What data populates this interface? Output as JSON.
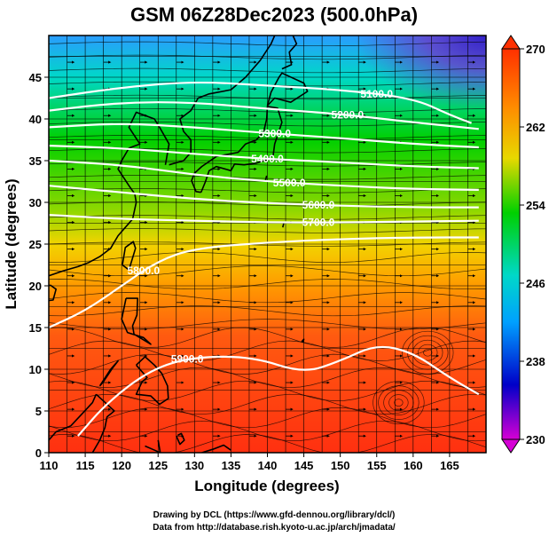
{
  "title": "GSM 06Z28Dec2023 (500.0hPa)",
  "xlabel": "Longitude (degrees)",
  "ylabel": "Latitude  (degrees)",
  "footer": [
    "Drawing by DCL (https://www.gfd-dennou.org/library/dcl/)",
    "Data from http://database.rish.kyoto-u.ac.jp/arch/jmadata/"
  ],
  "chart_data": {
    "type": "heatmap",
    "title": "GSM 06Z28Dec2023 (500.0hPa)",
    "xlabel": "Longitude (degrees)",
    "ylabel": "Latitude  (degrees)",
    "xlim": [
      110,
      170
    ],
    "ylim": [
      0,
      50
    ],
    "x_ticks": [
      110,
      115,
      120,
      125,
      130,
      135,
      140,
      145,
      150,
      155,
      160,
      165
    ],
    "y_ticks": [
      0,
      5,
      10,
      15,
      20,
      25,
      30,
      35,
      40,
      45
    ],
    "grid": true,
    "field": "temperature (K), shaded",
    "overlay": "wind streamlines and geopotential height contours",
    "colorbar": {
      "min": 230,
      "max": 270,
      "ticks": [
        230,
        238,
        246,
        254,
        262,
        270
      ],
      "colors": [
        "#d500d5",
        "#0000c8",
        "#00a0ff",
        "#00d8c8",
        "#00d000",
        "#e8d800",
        "#ff8c00",
        "#ff3000"
      ]
    },
    "contour_labels": [
      "5100.0",
      "5200.0",
      "5300.0",
      "5400.0",
      "5500.0",
      "5600.0",
      "5700.0",
      "5800.0",
      "5900.0"
    ],
    "contours": [
      {
        "level": "5100.0",
        "points": [
          [
            110,
            42.5
          ],
          [
            120,
            43.8
          ],
          [
            130,
            44.5
          ],
          [
            140,
            44.0
          ],
          [
            150,
            43.5
          ],
          [
            160,
            42.5
          ],
          [
            165,
            40.5
          ],
          [
            168,
            39.5
          ]
        ]
      },
      {
        "level": "5200.0",
        "points": [
          [
            110,
            41
          ],
          [
            120,
            42
          ],
          [
            130,
            42
          ],
          [
            140,
            41.2
          ],
          [
            150,
            40.6
          ],
          [
            160,
            39.6
          ],
          [
            169,
            38.8
          ]
        ]
      },
      {
        "level": "5300.0",
        "points": [
          [
            110,
            39
          ],
          [
            120,
            39.5
          ],
          [
            130,
            39
          ],
          [
            140,
            38.3
          ],
          [
            150,
            37.7
          ],
          [
            160,
            37
          ],
          [
            169,
            36.6
          ]
        ]
      },
      {
        "level": "5400.0",
        "points": [
          [
            110,
            36.8
          ],
          [
            120,
            36.5
          ],
          [
            130,
            35.8
          ],
          [
            140,
            35.2
          ],
          [
            150,
            34.8
          ],
          [
            160,
            34.3
          ],
          [
            169,
            34.1
          ]
        ]
      },
      {
        "level": "5500.0",
        "points": [
          [
            110,
            35
          ],
          [
            120,
            34.5
          ],
          [
            130,
            33.3
          ],
          [
            140,
            32.5
          ],
          [
            150,
            32.0
          ],
          [
            160,
            31.6
          ],
          [
            169,
            31.5
          ]
        ]
      },
      {
        "level": "5600.0",
        "points": [
          [
            110,
            32
          ],
          [
            120,
            31.2
          ],
          [
            130,
            30.4
          ],
          [
            140,
            29.9
          ],
          [
            150,
            29.6
          ],
          [
            160,
            29.4
          ],
          [
            169,
            29.4
          ]
        ]
      },
      {
        "level": "5700.0",
        "points": [
          [
            110,
            28.5
          ],
          [
            120,
            28.0
          ],
          [
            130,
            27.8
          ],
          [
            140,
            27.6
          ],
          [
            150,
            27.6
          ],
          [
            160,
            27.7
          ],
          [
            169,
            27.8
          ]
        ]
      },
      {
        "level": "5800.0",
        "points": [
          [
            110,
            15
          ],
          [
            115,
            17
          ],
          [
            120,
            20
          ],
          [
            125,
            23
          ],
          [
            130,
            24.5
          ],
          [
            140,
            25.2
          ],
          [
            150,
            25.6
          ],
          [
            160,
            25.8
          ],
          [
            169,
            25.8
          ]
        ]
      },
      {
        "level": "5900.0",
        "points": [
          [
            114,
            2
          ],
          [
            118,
            6
          ],
          [
            124,
            10
          ],
          [
            130,
            11.5
          ],
          [
            138,
            11.5
          ],
          [
            145,
            9.5
          ],
          [
            150,
            11
          ],
          [
            155,
            13
          ],
          [
            160,
            12
          ],
          [
            165,
            9
          ],
          [
            169,
            7
          ]
        ]
      }
    ],
    "cyclonic_centers": [
      [
        158,
        6
      ],
      [
        162,
        12
      ]
    ]
  }
}
